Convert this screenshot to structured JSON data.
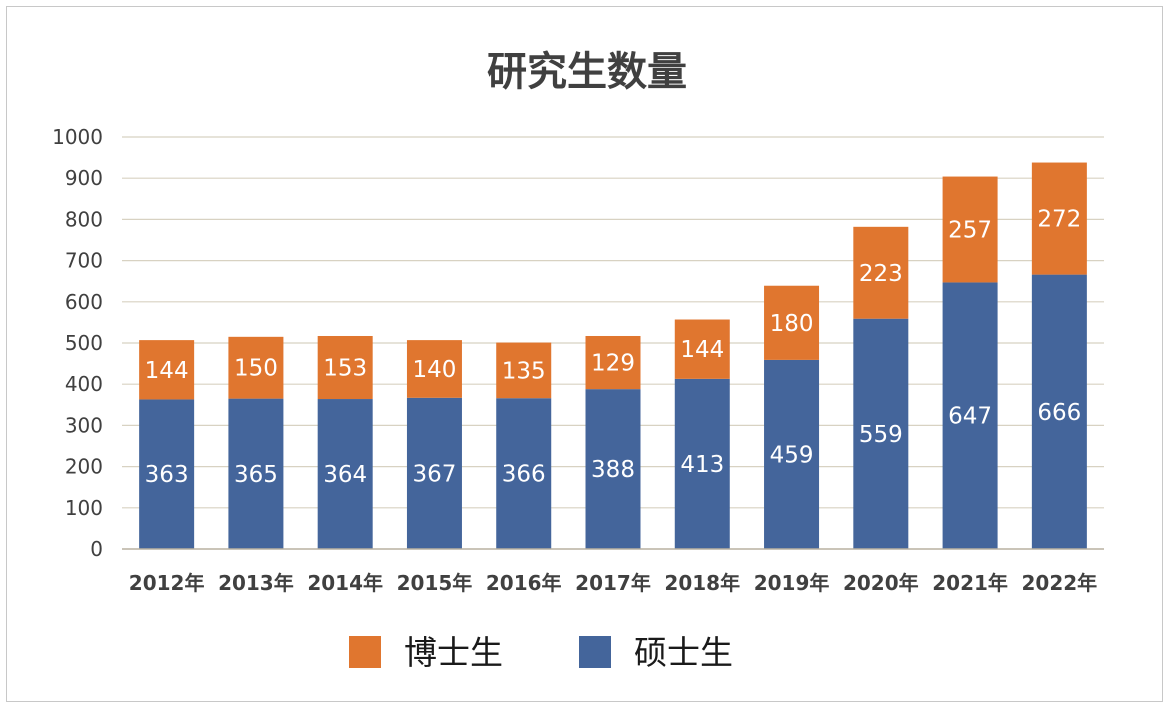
{
  "chart_data": {
    "type": "bar",
    "stacked": true,
    "title": "研究生数量",
    "xlabel": "",
    "ylabel": "",
    "ylim": [
      0,
      1000
    ],
    "yticks": [
      0,
      100,
      200,
      300,
      400,
      500,
      600,
      700,
      800,
      900,
      1000
    ],
    "grid": true,
    "legend_position": "bottom",
    "categories": [
      "2012年",
      "2013年",
      "2014年",
      "2015年",
      "2016年",
      "2017年",
      "2018年",
      "2019年",
      "2020年",
      "2021年",
      "2022年"
    ],
    "series": [
      {
        "name": "硕士生",
        "color": "#44659b",
        "values": [
          363,
          365,
          364,
          367,
          366,
          388,
          413,
          459,
          559,
          647,
          666
        ]
      },
      {
        "name": "博士生",
        "color": "#e0762f",
        "values": [
          144,
          150,
          153,
          140,
          135,
          129,
          144,
          180,
          223,
          257,
          272
        ]
      }
    ],
    "legend_order": [
      1,
      0
    ]
  }
}
